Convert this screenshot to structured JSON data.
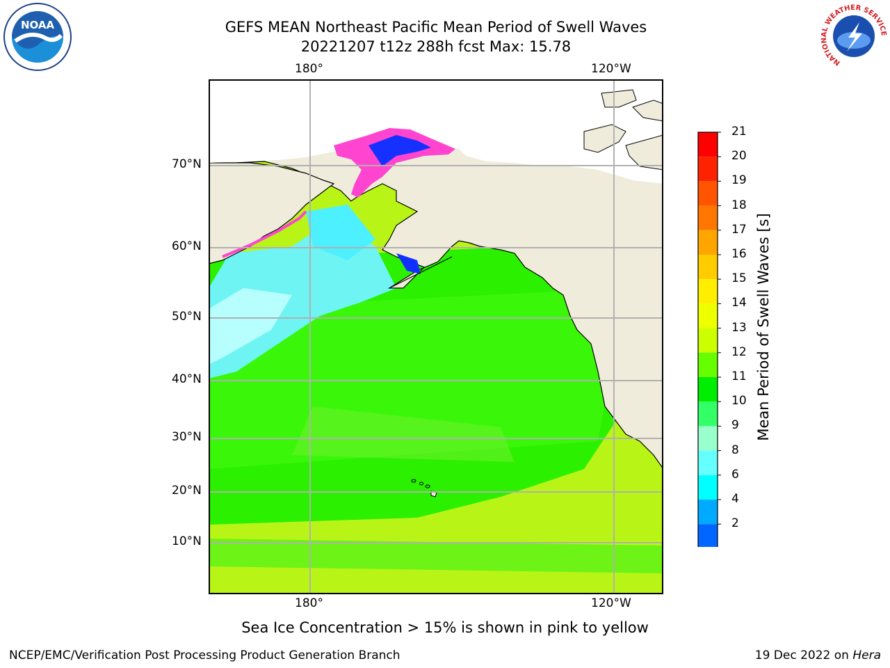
{
  "title": {
    "line1": "GEFS MEAN Northeast Pacific Mean Period of Swell Waves",
    "line2": "20221207 t12z 288h fcst   Max: 15.78"
  },
  "map": {
    "top_lon_labels": [
      "180°",
      "120°W"
    ],
    "bottom_lon_labels": [
      "180°",
      "120°W"
    ],
    "lat_labels": [
      "70°N",
      "60°N",
      "50°N",
      "40°N",
      "30°N",
      "20°N",
      "10°N"
    ],
    "colors": {
      "land": "#efecdc",
      "gridline": "#b0b0b0",
      "ocean_green": "#33ff00",
      "ocean_yellowgreen": "#aaff00",
      "ocean_cyan": "#99ffff",
      "ice_pink": "#ff33cc",
      "deep_blue": "#0022ff"
    }
  },
  "colorbar": {
    "title": "Mean Period of Swell Waves [s]",
    "levels": [
      "21",
      "20",
      "19",
      "18",
      "17",
      "16",
      "15",
      "14",
      "13",
      "12",
      "11",
      "10",
      "9",
      "8",
      "6",
      "4",
      "2"
    ],
    "colors": [
      "#ff0000",
      "#ff2200",
      "#ff5500",
      "#ff7700",
      "#ffa500",
      "#ffcc00",
      "#ffee00",
      "#eeff00",
      "#ccff00",
      "#66ff00",
      "#00ee00",
      "#33ff66",
      "#99ffcc",
      "#66ffff",
      "#00ffff",
      "#00aaff",
      "#0066ff"
    ],
    "extend_color": "#0000ff"
  },
  "notes": {
    "ice": "Sea Ice Concentration > 15% is shown in pink to yellow"
  },
  "footer": {
    "left": "NCEP/EMC/Verification Post Processing Product Generation Branch",
    "right_date": "19 Dec 2022 on ",
    "right_host": "Hera"
  },
  "logos": {
    "noaa": "NOAA",
    "nws": "NATIONAL WEATHER SERVICE"
  }
}
